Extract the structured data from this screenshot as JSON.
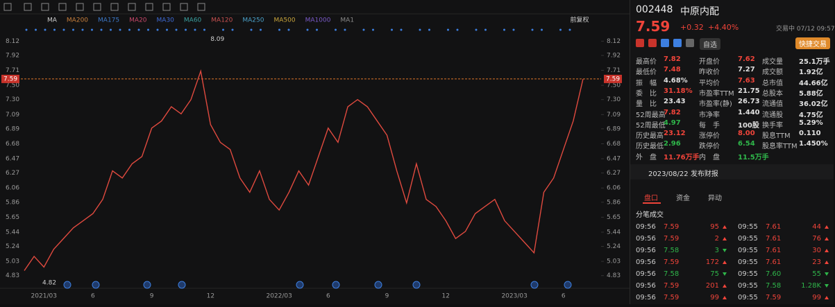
{
  "chart_data": {
    "type": "line",
    "color": "#e04a3f",
    "grid": false,
    "ma_legend": [
      {
        "label": "MA",
        "color": "#cfcfcf"
      },
      {
        "label": "MA200",
        "color": "#c87f3c"
      },
      {
        "label": "MA175",
        "color": "#3c78c8"
      },
      {
        "label": "MA20",
        "color": "#c8476a"
      },
      {
        "label": "MA30",
        "color": "#3f6bd6"
      },
      {
        "label": "MA60",
        "color": "#3aa0a0"
      },
      {
        "label": "MA120",
        "color": "#c85050"
      },
      {
        "label": "MA250",
        "color": "#4aa0c8"
      },
      {
        "label": "MA500",
        "color": "#c8a43c"
      },
      {
        "label": "MA1000",
        "color": "#7a5ac8"
      },
      {
        "label": "MA1",
        "color": "#8a8a8a"
      }
    ],
    "adjust": "前复权",
    "categories": [
      null,
      null,
      "2021/03",
      null,
      null,
      null,
      null,
      "6",
      null,
      null,
      null,
      null,
      null,
      "9",
      null,
      null,
      null,
      null,
      null,
      "12",
      null,
      null,
      null,
      null,
      null,
      null,
      "2022/03",
      null,
      null,
      null,
      null,
      "6",
      null,
      null,
      null,
      null,
      null,
      "9",
      null,
      null,
      null,
      null,
      null,
      "12",
      null,
      null,
      null,
      null,
      null,
      null,
      "2023/03",
      null,
      null,
      null,
      null,
      "6",
      null,
      null
    ],
    "values": [
      4.9,
      5.1,
      4.95,
      5.2,
      5.35,
      5.5,
      5.6,
      5.7,
      5.9,
      6.3,
      6.2,
      6.4,
      6.5,
      6.9,
      7.0,
      7.2,
      7.1,
      7.3,
      7.7,
      6.95,
      6.7,
      6.6,
      6.2,
      6.0,
      6.3,
      5.9,
      5.75,
      6.0,
      6.3,
      6.1,
      6.5,
      6.9,
      6.7,
      7.2,
      7.3,
      7.2,
      7.0,
      6.8,
      6.3,
      5.85,
      6.4,
      5.9,
      5.8,
      5.6,
      5.35,
      5.45,
      5.7,
      5.8,
      5.9,
      5.6,
      5.45,
      5.3,
      5.15,
      6.0,
      6.2,
      6.6,
      7.0,
      7.59
    ],
    "ylim": [
      4.73,
      8.26
    ],
    "yticks": [
      8.12,
      7.92,
      7.71,
      {
        "value": 7.5,
        "label": "7.50"
      },
      {
        "value": 7.3,
        "label": "7.30"
      },
      7.09,
      6.89,
      6.68,
      6.47,
      6.27,
      6.06,
      5.86,
      5.65,
      5.44,
      5.24,
      5.03,
      4.83
    ],
    "reference_line": {
      "value": 7.59,
      "color": "#e0762a"
    },
    "high_annotation": 8.09,
    "low_annotation": 4.82
  },
  "quote": {
    "code": "002448",
    "name": "中原内配",
    "price": "7.59",
    "change": "+0.32",
    "pct": "+4.40%",
    "status": "交易中 07/12 09:57",
    "watch": "自选",
    "quick_trade": "快捷交易",
    "stats": [
      [
        [
          "最高价",
          "7.82",
          "up"
        ],
        [
          "开盘价",
          "7.62",
          "up"
        ],
        [
          "成交量",
          "25.1万手",
          "flat"
        ]
      ],
      [
        [
          "最低价",
          "7.48",
          "up"
        ],
        [
          "昨收价",
          "7.27",
          "flat"
        ],
        [
          "成交额",
          "1.92亿",
          "flat"
        ]
      ],
      [
        [
          "振　幅",
          "4.68%",
          "flat"
        ],
        [
          "平均价",
          "7.63",
          "up"
        ],
        [
          "总市值",
          "44.66亿",
          "flat"
        ]
      ],
      [
        [
          "委　比",
          "31.18%",
          "up"
        ],
        [
          "市盈率TTM",
          "21.75",
          "flat"
        ],
        [
          "总股本",
          "5.88亿",
          "flat"
        ]
      ],
      [
        [
          "量　比",
          "23.43",
          "flat"
        ],
        [
          "市盈率(静)",
          "26.73",
          "flat"
        ],
        [
          "流通值",
          "36.02亿",
          "flat"
        ]
      ],
      [
        [
          "52周最高",
          "7.82",
          "up"
        ],
        [
          "市净率",
          "1.440",
          "flat"
        ],
        [
          "流通股",
          "4.75亿",
          "flat"
        ]
      ],
      [
        [
          "52周最低",
          "4.97",
          "down"
        ],
        [
          "每　手",
          "100股",
          "flat"
        ],
        [
          "换手率",
          "5.29%",
          "flat"
        ]
      ],
      [
        [
          "历史最高",
          "23.12",
          "up"
        ],
        [
          "涨停价",
          "8.00",
          "up"
        ],
        [
          "股息TTM",
          "0.110",
          "flat"
        ]
      ],
      [
        [
          "历史最低",
          "2.96",
          "down"
        ],
        [
          "跌停价",
          "6.54",
          "down"
        ],
        [
          "股息率TTM",
          "1.450%",
          "flat"
        ]
      ],
      [
        [
          "外　盘",
          "11.76万手",
          "up"
        ],
        [
          "内　盘",
          "11.5万手",
          "down"
        ]
      ]
    ],
    "notice": "2023/08/22 发布财报",
    "tabs": [
      "盘口",
      "资金",
      "异动"
    ],
    "trades_title": "分笔成交",
    "trades": [
      [
        [
          "09:56",
          "7.59",
          "95",
          "up"
        ],
        [
          "09:55",
          "7.61",
          "44",
          "up"
        ]
      ],
      [
        [
          "09:56",
          "7.59",
          "2",
          "up"
        ],
        [
          "09:55",
          "7.61",
          "76",
          "up"
        ]
      ],
      [
        [
          "09:56",
          "7.58",
          "3",
          "down"
        ],
        [
          "09:55",
          "7.61",
          "30",
          "up"
        ]
      ],
      [
        [
          "09:56",
          "7.59",
          "172",
          "up"
        ],
        [
          "09:55",
          "7.61",
          "23",
          "up"
        ]
      ],
      [
        [
          "09:56",
          "7.58",
          "75",
          "down"
        ],
        [
          "09:55",
          "7.60",
          "55",
          "down"
        ]
      ],
      [
        [
          "09:56",
          "7.59",
          "201",
          "up"
        ],
        [
          "09:55",
          "7.58",
          "1.28K",
          "down"
        ]
      ],
      [
        [
          "09:56",
          "7.59",
          "99",
          "up"
        ],
        [
          "09:55",
          "7.59",
          "99",
          "up"
        ]
      ]
    ]
  }
}
